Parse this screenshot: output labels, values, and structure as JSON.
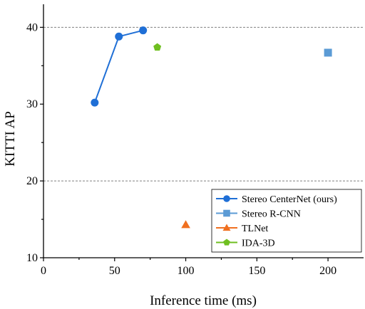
{
  "chart_data": {
    "type": "scatter",
    "title": "",
    "xlabel": "Inference time (ms)",
    "ylabel": "KITTI AP",
    "xlim": [
      0,
      225
    ],
    "ylim": [
      10,
      43
    ],
    "xticks": [
      0,
      50,
      100,
      150,
      200
    ],
    "yticks": [
      10,
      20,
      30,
      40
    ],
    "grid": "horizontal dashed at y = 20 and 40",
    "legend_position": "bottom-right",
    "series": [
      {
        "name": "Stereo CenterNet (ours)",
        "marker": "circle",
        "connected": true,
        "color": "#1f6fd6",
        "points": [
          {
            "x": 36,
            "y": 30.2
          },
          {
            "x": 53,
            "y": 38.8
          },
          {
            "x": 70,
            "y": 39.6
          }
        ]
      },
      {
        "name": "Stereo R-CNN",
        "marker": "square",
        "connected": false,
        "color": "#5b9bd5",
        "points": [
          {
            "x": 200,
            "y": 36.7
          }
        ]
      },
      {
        "name": "TLNet",
        "marker": "triangle",
        "connected": false,
        "color": "#f07020",
        "points": [
          {
            "x": 100,
            "y": 14.3
          }
        ]
      },
      {
        "name": "IDA-3D",
        "marker": "pentagon",
        "connected": false,
        "color": "#6fbf20",
        "points": [
          {
            "x": 80,
            "y": 37.4
          }
        ]
      }
    ]
  }
}
